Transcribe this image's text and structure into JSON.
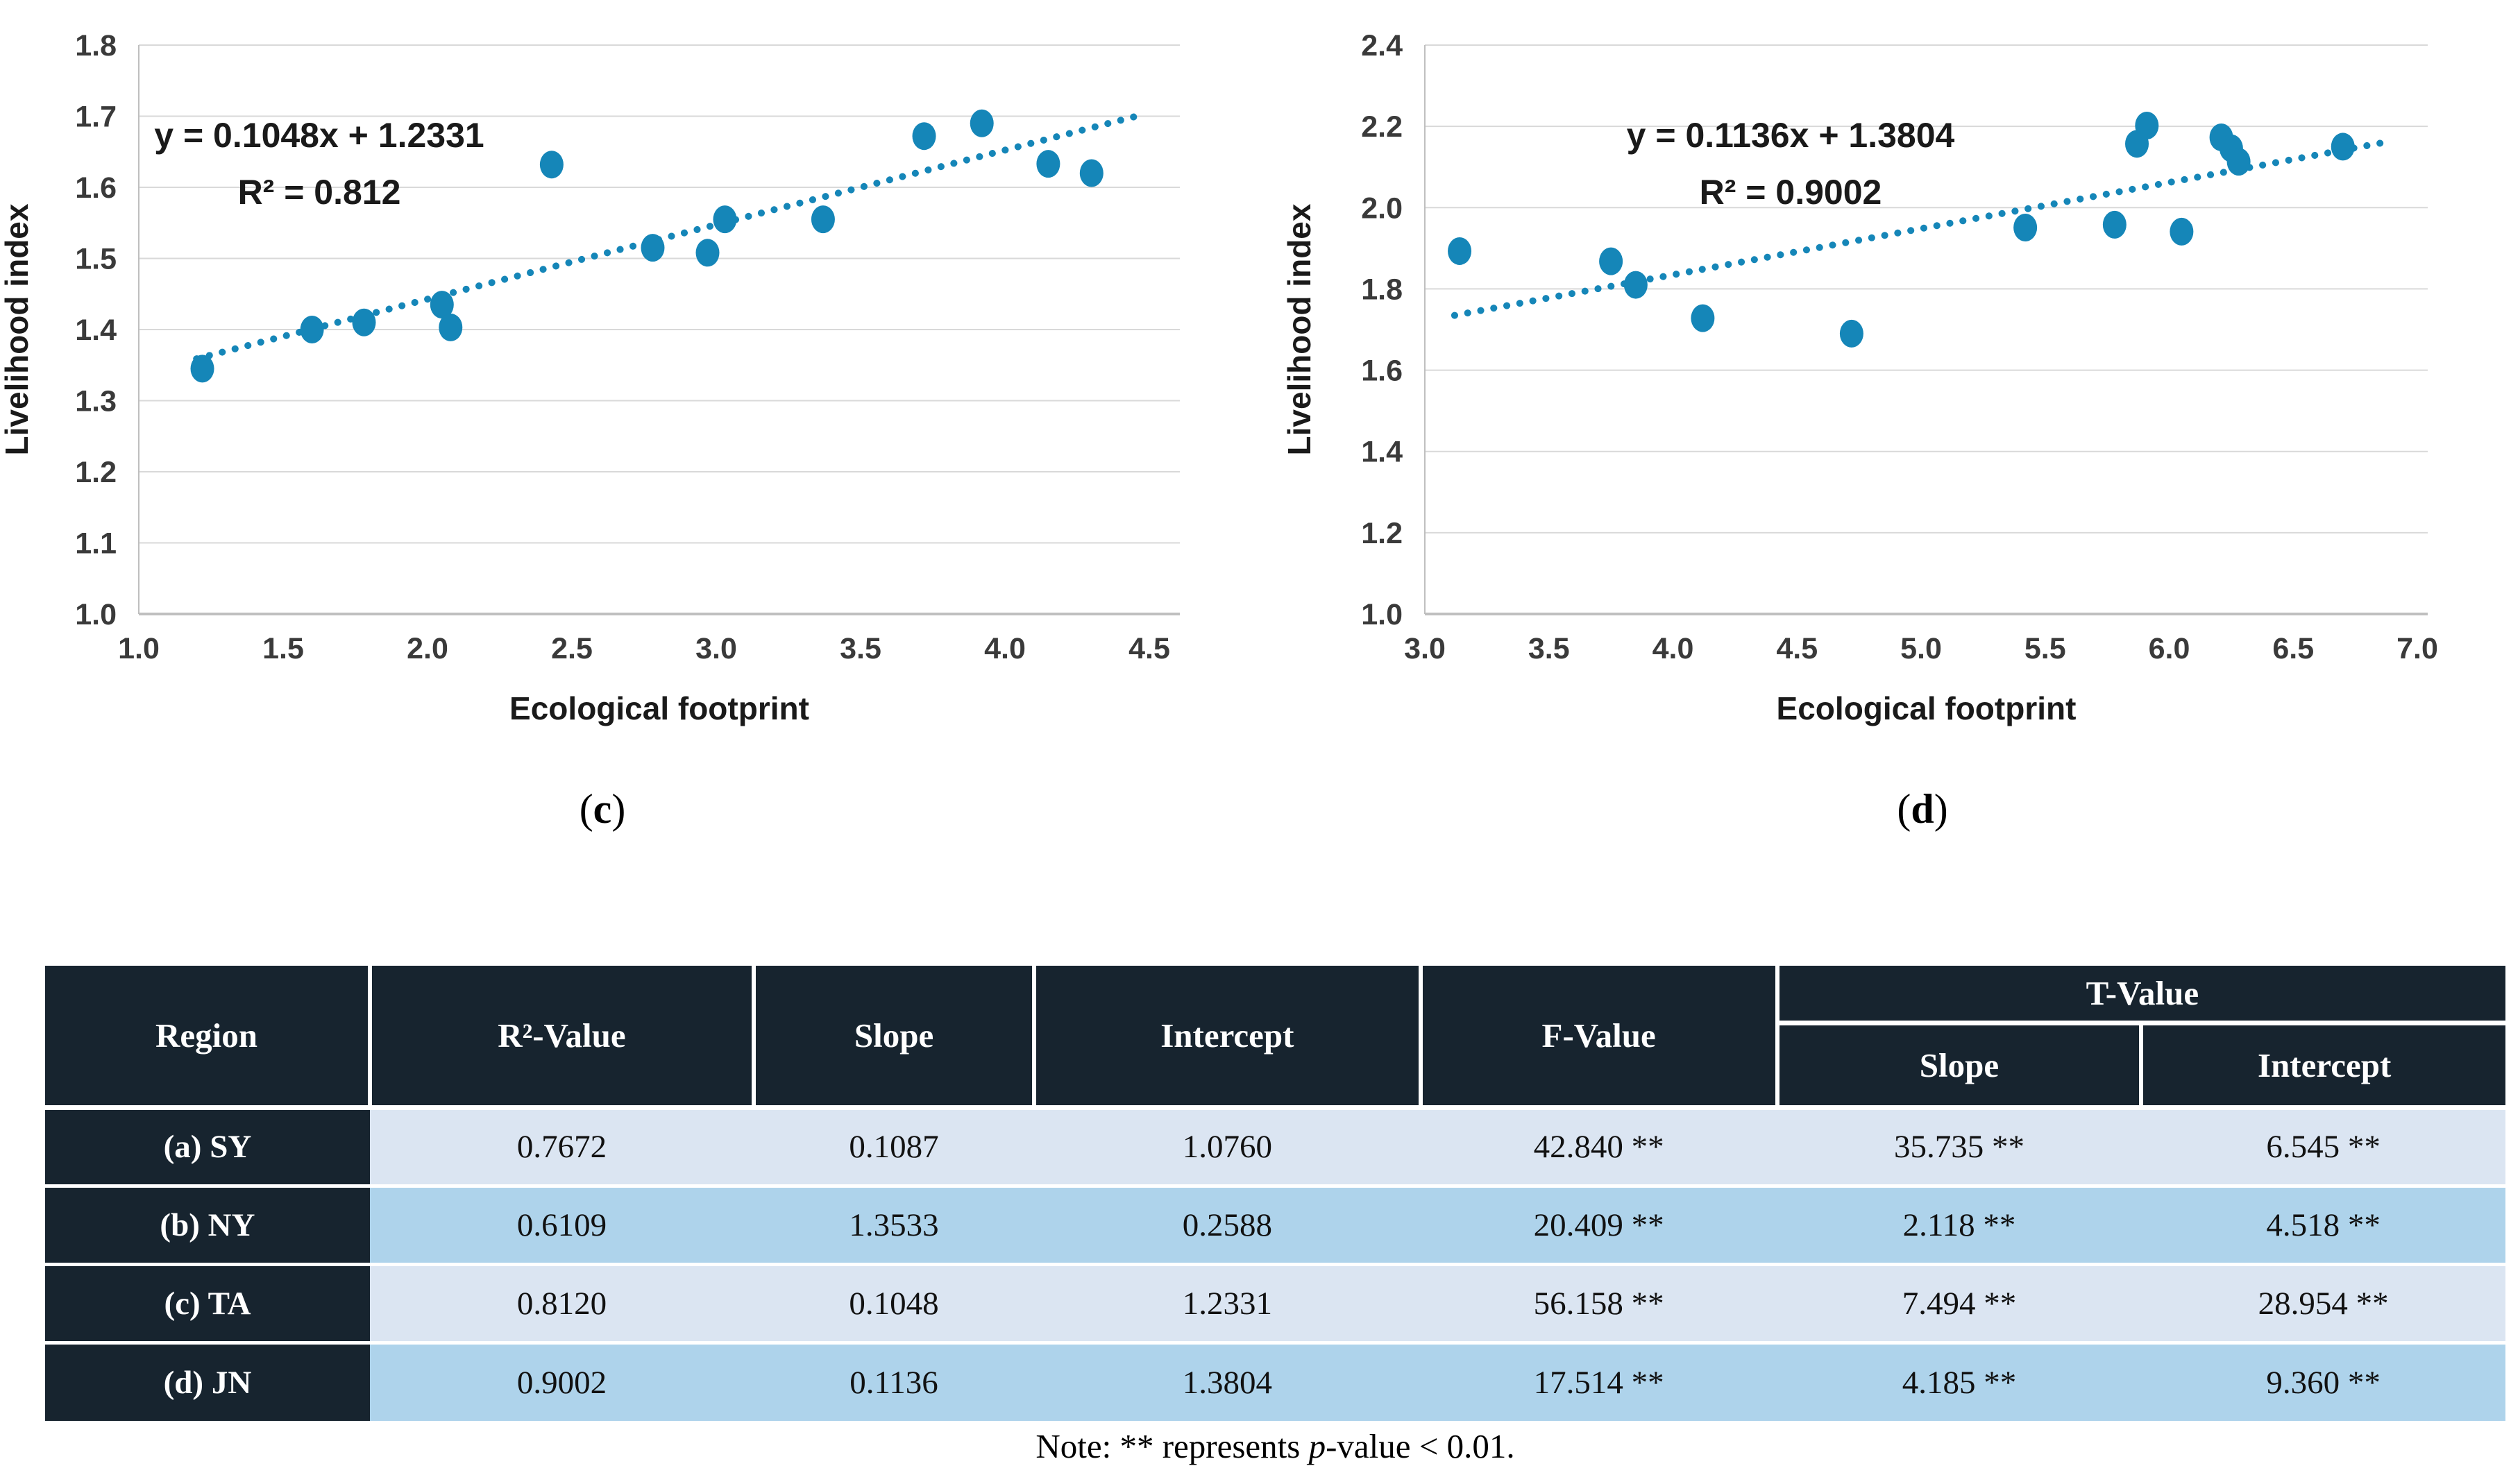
{
  "colors": {
    "accent": "#1586b8",
    "grid": "#d9d9d9",
    "axis": "#bfbfbf",
    "header_bg": "#17242f",
    "row_light": "#dbe5f2",
    "row_dark": "#aed3eb"
  },
  "chart_data": [
    {
      "id": "c",
      "type": "scatter",
      "caption": {
        "open": "(",
        "letter": "c",
        "close": ")"
      },
      "xlabel": "Ecological footprint",
      "ylabel": "Livelihood index",
      "xlim": [
        1.0,
        4.5
      ],
      "ylim": [
        1.0,
        1.8
      ],
      "xticks": [
        "1.0",
        "1.5",
        "2.0",
        "2.5",
        "3.0",
        "3.5",
        "4.0",
        "4.5"
      ],
      "yticks": [
        "1.0",
        "1.1",
        "1.2",
        "1.3",
        "1.4",
        "1.5",
        "1.6",
        "1.7",
        "1.8"
      ],
      "grid": true,
      "legend": "none",
      "equation": "y = 0.1048x + 1.2331",
      "r_squared": "R² = 0.812",
      "slope": 0.1048,
      "intercept": 1.2331,
      "trend_x": [
        1.2,
        4.45
      ],
      "points": [
        [
          1.22,
          1.345
        ],
        [
          1.6,
          1.4
        ],
        [
          1.78,
          1.41
        ],
        [
          2.05,
          1.435
        ],
        [
          2.08,
          1.403
        ],
        [
          2.43,
          1.632
        ],
        [
          2.78,
          1.515
        ],
        [
          2.97,
          1.508
        ],
        [
          3.03,
          1.555
        ],
        [
          3.37,
          1.555
        ],
        [
          3.72,
          1.672
        ],
        [
          3.92,
          1.69
        ],
        [
          4.15,
          1.633
        ],
        [
          4.3,
          1.62
        ]
      ]
    },
    {
      "id": "d",
      "type": "scatter",
      "caption": {
        "open": "(",
        "letter": "d",
        "close": ")"
      },
      "xlabel": "Ecological footprint",
      "ylabel": "Livelihood index",
      "xlim": [
        3.0,
        7.0
      ],
      "ylim": [
        1.0,
        2.4
      ],
      "xticks": [
        "3.0",
        "3.5",
        "4.0",
        "4.5",
        "5.0",
        "5.5",
        "6.0",
        "6.5",
        "7.0"
      ],
      "yticks": [
        "1.0",
        "1.2",
        "1.4",
        "1.6",
        "1.8",
        "2.0",
        "2.2",
        "2.4"
      ],
      "grid": true,
      "legend": "none",
      "equation": "y = 0.1136x + 1.3804",
      "r_squared": "R² = 0.9002",
      "slope": 0.1136,
      "intercept": 1.3804,
      "trend_x": [
        3.12,
        6.85
      ],
      "points": [
        [
          3.14,
          1.893
        ],
        [
          3.75,
          1.868
        ],
        [
          3.85,
          1.81
        ],
        [
          4.12,
          1.728
        ],
        [
          4.72,
          1.69
        ],
        [
          5.42,
          1.951
        ],
        [
          5.78,
          1.958
        ],
        [
          5.87,
          2.157
        ],
        [
          5.91,
          2.202
        ],
        [
          6.05,
          1.941
        ],
        [
          6.21,
          2.173
        ],
        [
          6.25,
          2.146
        ],
        [
          6.28,
          2.113
        ],
        [
          6.7,
          2.15
        ]
      ]
    }
  ],
  "table": {
    "columns": [
      "Region",
      "R²-Value",
      "Slope",
      "Intercept",
      "F-Value"
    ],
    "t_value_group": "T-Value",
    "t_value_sub": [
      "Slope",
      "Intercept"
    ],
    "rows": [
      {
        "region": "(a) SY",
        "values": [
          "0.7672",
          "0.1087",
          "1.0760",
          "42.840 **",
          "35.735 **",
          "6.545 **"
        ]
      },
      {
        "region": "(b) NY",
        "values": [
          "0.6109",
          "1.3533",
          "0.2588",
          "20.409 **",
          "2.118 **",
          "4.518 **"
        ]
      },
      {
        "region": "(c) TA",
        "values": [
          "0.8120",
          "0.1048",
          "1.2331",
          "56.158 **",
          "7.494 **",
          "28.954 **"
        ]
      },
      {
        "region": "(d) JN",
        "values": [
          "0.9002",
          "0.1136",
          "1.3804",
          "17.514 **",
          "4.185 **",
          "9.360 **"
        ]
      }
    ]
  },
  "note": {
    "prefix": "Note: ** represents ",
    "italic": "p",
    "suffix": "-value < 0.01."
  }
}
